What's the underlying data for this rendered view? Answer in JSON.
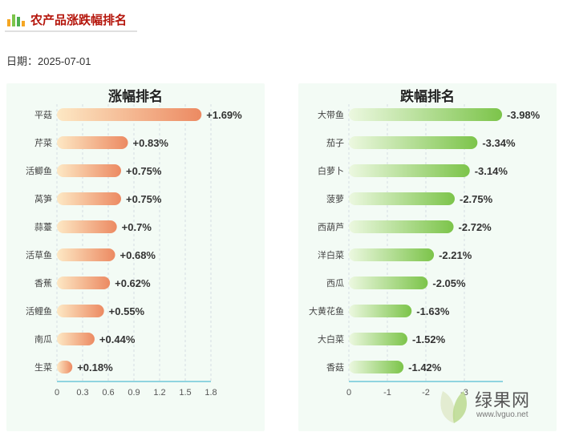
{
  "header": {
    "title": "农产品涨跌幅排名",
    "date_label": "日期：2025-07-01"
  },
  "colors": {
    "title_red": "#b5160c",
    "rise_start": "#fde8c4",
    "rise_end": "#ec8a62",
    "fall_start": "#ecf8e0",
    "fall_end": "#7cc44a",
    "panel_bg": "#f3fbf5",
    "axis_line": "#6ec8d8"
  },
  "watermark": {
    "brand": "绿果网",
    "url": "www.lvguo.net"
  },
  "chart_data": [
    {
      "type": "bar",
      "orientation": "horizontal",
      "title": "涨幅排名",
      "categories": [
        "平菇",
        "芹菜",
        "活鲫鱼",
        "莴笋",
        "蒜薹",
        "活草鱼",
        "香蕉",
        "活鲤鱼",
        "南瓜",
        "生菜"
      ],
      "values": [
        1.69,
        0.83,
        0.75,
        0.75,
        0.7,
        0.68,
        0.62,
        0.55,
        0.44,
        0.18
      ],
      "value_labels": [
        "+1.69%",
        "+0.83%",
        "+0.75%",
        "+0.75%",
        "+0.7%",
        "+0.68%",
        "+0.62%",
        "+0.55%",
        "+0.44%",
        "+0.18%"
      ],
      "xlim": [
        0,
        1.8
      ],
      "xticks": [
        0,
        0.3,
        0.6,
        0.9,
        1.2,
        1.5,
        1.8
      ],
      "xtick_labels": [
        "0",
        "0.3",
        "0.6",
        "0.9",
        "1.2",
        "1.5",
        "1.8"
      ],
      "grid": true
    },
    {
      "type": "bar",
      "orientation": "horizontal",
      "title": "跌幅排名",
      "categories": [
        "大带鱼",
        "茄子",
        "白萝卜",
        "菠萝",
        "西葫芦",
        "洋白菜",
        "西瓜",
        "大黄花鱼",
        "大白菜",
        "香菇"
      ],
      "values": [
        -3.98,
        -3.34,
        -3.14,
        -2.75,
        -2.72,
        -2.21,
        -2.05,
        -1.63,
        -1.52,
        -1.42
      ],
      "value_labels": [
        "-3.98%",
        "-3.34%",
        "-3.14%",
        "-2.75%",
        "-2.72%",
        "-2.21%",
        "-2.05%",
        "-1.63%",
        "-1.52%",
        "-1.42%"
      ],
      "xlim": [
        0,
        -4
      ],
      "xticks": [
        0,
        -1,
        -2,
        -3
      ],
      "xtick_labels": [
        "0",
        "-1",
        "-2",
        "-3"
      ],
      "grid": true
    }
  ]
}
